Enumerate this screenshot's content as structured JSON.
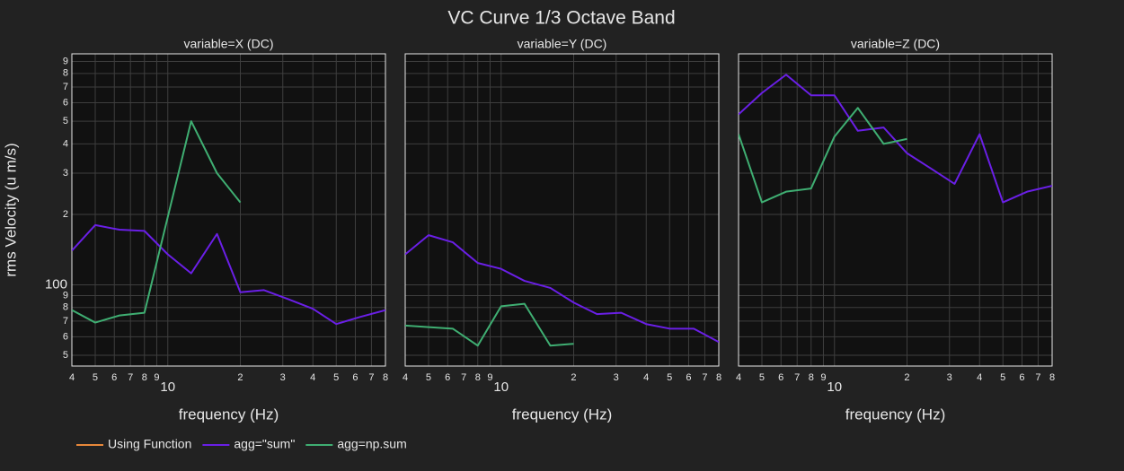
{
  "title": "VC Curve 1/3 Octave Band",
  "ylabel": "rms Velocity (u m/s)",
  "chart_data": [
    {
      "type": "line",
      "title": "variable=X (DC)",
      "xlabel": "frequency (Hz)",
      "log_x": true,
      "log_y": true,
      "grid": true,
      "x": [
        4,
        5,
        6.3,
        8,
        10,
        12.5,
        16,
        20,
        25,
        31.5,
        40,
        50,
        63,
        80
      ],
      "xlim": [
        4,
        80
      ],
      "xticks": [
        4,
        5,
        6,
        7,
        8,
        9,
        10,
        {
          "value": 20,
          "label": "2"
        },
        {
          "value": 30,
          "label": "3"
        },
        {
          "value": 40,
          "label": "4"
        },
        {
          "value": 50,
          "label": "5"
        },
        {
          "value": 60,
          "label": "6"
        },
        {
          "value": 70,
          "label": "7"
        },
        {
          "value": 80,
          "label": "8"
        }
      ],
      "ylim": [
        45,
        970
      ],
      "yticks": [
        {
          "value": 50,
          "label": "5"
        },
        {
          "value": 60,
          "label": "6"
        },
        {
          "value": 70,
          "label": "7"
        },
        {
          "value": 80,
          "label": "8"
        },
        {
          "value": 90,
          "label": "9"
        },
        100,
        {
          "value": 200,
          "label": "2"
        },
        {
          "value": 300,
          "label": "3"
        },
        {
          "value": 400,
          "label": "4"
        },
        {
          "value": 500,
          "label": "5"
        },
        {
          "value": 600,
          "label": "6"
        },
        {
          "value": 700,
          "label": "7"
        },
        {
          "value": 800,
          "label": "8"
        },
        {
          "value": 900,
          "label": "9"
        }
      ],
      "series": [
        {
          "name": "Using Function",
          "color": "#e8883a",
          "values": [
            null,
            null,
            null,
            null,
            null,
            null,
            null,
            null,
            null,
            null,
            null,
            null,
            null,
            null
          ]
        },
        {
          "name": "agg=\"sum\"",
          "color": "#6a1fe6",
          "values": [
            140,
            180,
            172,
            170,
            135,
            112,
            165,
            93,
            95,
            87,
            79,
            68,
            73,
            78
          ]
        },
        {
          "name": "agg=np.sum",
          "color": "#3fae72",
          "values": [
            78,
            69,
            74,
            76,
            195,
            500,
            300,
            225,
            null,
            null,
            null,
            null,
            null,
            null
          ]
        }
      ]
    },
    {
      "type": "line",
      "title": "variable=Y (DC)",
      "xlabel": "frequency (Hz)",
      "log_x": true,
      "x": [
        4,
        5,
        6.3,
        8,
        10,
        12.5,
        16,
        20,
        25,
        31.5,
        40,
        50,
        63,
        80
      ],
      "xlim": [
        4,
        80
      ],
      "xticks": [
        4,
        5,
        6,
        7,
        8,
        9,
        10,
        {
          "value": 20,
          "label": "2"
        },
        {
          "value": 30,
          "label": "3"
        },
        {
          "value": 40,
          "label": "4"
        },
        {
          "value": 50,
          "label": "5"
        },
        {
          "value": 60,
          "label": "6"
        },
        {
          "value": 70,
          "label": "7"
        },
        {
          "value": 80,
          "label": "8"
        }
      ],
      "series": [
        {
          "name": "Using Function",
          "color": "#e8883a",
          "values": [
            null,
            null,
            null,
            null,
            null,
            null,
            null,
            null,
            null,
            null,
            null,
            null,
            null,
            null
          ]
        },
        {
          "name": "agg=\"sum\"",
          "color": "#6a1fe6",
          "values": [
            135,
            163,
            152,
            124,
            117,
            104,
            97,
            84,
            75,
            76,
            68,
            65,
            65,
            57
          ]
        },
        {
          "name": "agg=np.sum",
          "color": "#3fae72",
          "values": [
            67,
            66,
            65,
            55,
            81,
            83,
            55,
            56,
            null,
            null,
            null,
            null,
            null,
            null
          ]
        }
      ]
    },
    {
      "type": "line",
      "title": "variable=Z (DC)",
      "xlabel": "frequency (Hz)",
      "log_x": true,
      "x": [
        4,
        5,
        6.3,
        8,
        10,
        12.5,
        16,
        20,
        25,
        31.5,
        40,
        50,
        63,
        80
      ],
      "xlim": [
        4,
        80
      ],
      "xticks": [
        4,
        5,
        6,
        7,
        8,
        9,
        10,
        {
          "value": 20,
          "label": "2"
        },
        {
          "value": 30,
          "label": "3"
        },
        {
          "value": 40,
          "label": "4"
        },
        {
          "value": 50,
          "label": "5"
        },
        {
          "value": 60,
          "label": "6"
        },
        {
          "value": 70,
          "label": "7"
        },
        {
          "value": 80,
          "label": "8"
        }
      ],
      "series": [
        {
          "name": "Using Function",
          "color": "#e8883a",
          "values": [
            null,
            null,
            null,
            null,
            null,
            null,
            null,
            null,
            null,
            null,
            null,
            null,
            null,
            null
          ]
        },
        {
          "name": "agg=\"sum\"",
          "color": "#6a1fe6",
          "values": [
            535,
            660,
            790,
            645,
            645,
            455,
            470,
            365,
            315,
            270,
            440,
            225,
            250,
            265
          ]
        },
        {
          "name": "agg=np.sum",
          "color": "#3fae72",
          "values": [
            440,
            225,
            250,
            258,
            430,
            570,
            400,
            420,
            null,
            null,
            null,
            null,
            null,
            null
          ]
        }
      ]
    }
  ]
}
